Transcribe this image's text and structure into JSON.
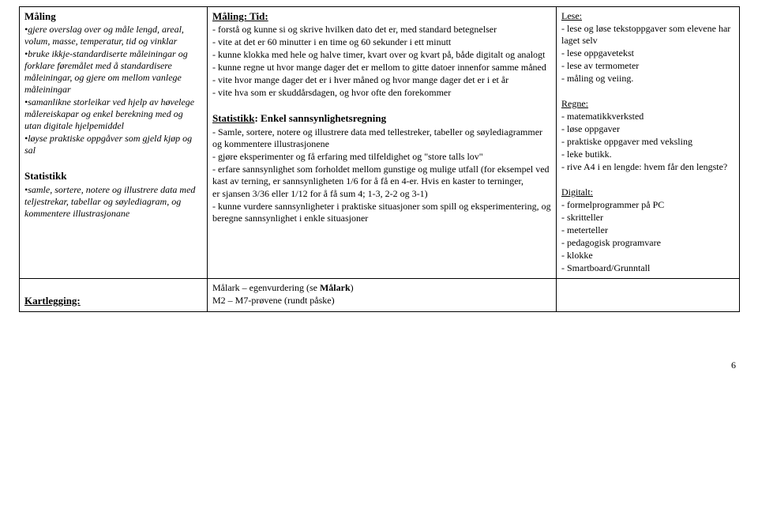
{
  "pageNumber": "6",
  "row1": {
    "col1": {
      "maling_heading": "Måling",
      "m1": "•gjere overslag over og måle lengd, areal, volum, masse, temperatur, tid og vinklar",
      "m2": "•bruke ikkje-standardiserte måleiningar og forklare føremålet med å standardisere måleiningar, og gjere om mellom vanlege måleiningar",
      "m3": "•samanlikne storleikar ved hjelp av høvelege målereiskapa​r og enkel berekning med og utan digitale hjelpemiddel",
      "m4": "•løyse praktiske oppgåver som gjeld kjøp og sal",
      "stat_heading": "Statistikk",
      "s1": "•samle, sortere, notere og illustrere data med teljestrekar, tabellar og søylediagram, og kommentere illustrasjonane"
    },
    "col2": {
      "maling_tid_heading": "Måling: Tid:",
      "mt1": "- forstå og kunne si og skrive hvilken dato det er, med standard betegnelser",
      "mt2": "- vite at det er 60 minutter i en time og 60 sekunder i ett minutt",
      "mt3": "- kunne klokka med hele og halve timer, kvart over og kvart på, både digitalt og analogt",
      "mt4": "- kunne regne ut hvor mange dager det er mellom to gitte datoer innenfor samme måned",
      "mt5": "- vite hvor mange dager det er i hver måned og hvor mange dager det er i et år",
      "mt6": "- vite hva som er skuddårsdagen, og hvor ofte den forekommer",
      "stat_heading_prefix": "Statistikk",
      "stat_heading_rest": ": Enkel sannsynlighetsregning",
      "st1": "- Samle, sortere, notere og illustrere data med tellestreker, tabeller og søylediagrammer og kommentere illustrasjonene",
      "st2": "- gjøre eksperimenter og få erfaring med tilfeldighet og \"store talls lov\"",
      "st3a": "- erfare sannsynlighet som forholdet mellom gunstige og mulige utfall (for eksempel ved kast av terning, er sannsynligheten 1/6 for å få en 4-er. Hvis en kaster to terninger,",
      "st3b": "  er sjansen 3/36 eller 1/12 for å få sum 4; 1-3, 2-2 og 3-1)",
      "st4": "- kunne vurdere sannsynligheter i praktiske situasjoner som spill og eksperimentering, og beregne sannsynlighet i enkle situasjoner"
    },
    "col3": {
      "lese_heading": "Lese:",
      "l1": "- lese og løse tekstoppgaver som elevene har laget selv",
      "l2": "- lese oppgavetekst",
      "l3": "- lese av termometer",
      "l4": "- måling og veiing.",
      "regne_heading": "Regne:",
      "r1": "- matematikkverksted",
      "r2": "- løse oppgaver",
      "r3": "- praktiske oppgaver med veksling",
      "r4": "- leke butikk.",
      "r5": "- rive A4 i en lengde: hvem får den lengste?",
      "digitalt_heading": "Digitalt:",
      "d1": " - formelprogrammer på PC",
      "d2": "- skritteller",
      "d3": "- meterteller",
      "d4": "- pedagogisk programvare",
      "d5": "- klokke",
      "d6": "- Smartboard/Grunntall"
    }
  },
  "row2": {
    "col1": {
      "heading": "Kartlegging:"
    },
    "col2": {
      "k1a": "Målark – egenvurdering (se ",
      "k1b": "Målark",
      "k1c": ")",
      "k2": "M2 – M7-prøvene (rundt påske)"
    }
  }
}
